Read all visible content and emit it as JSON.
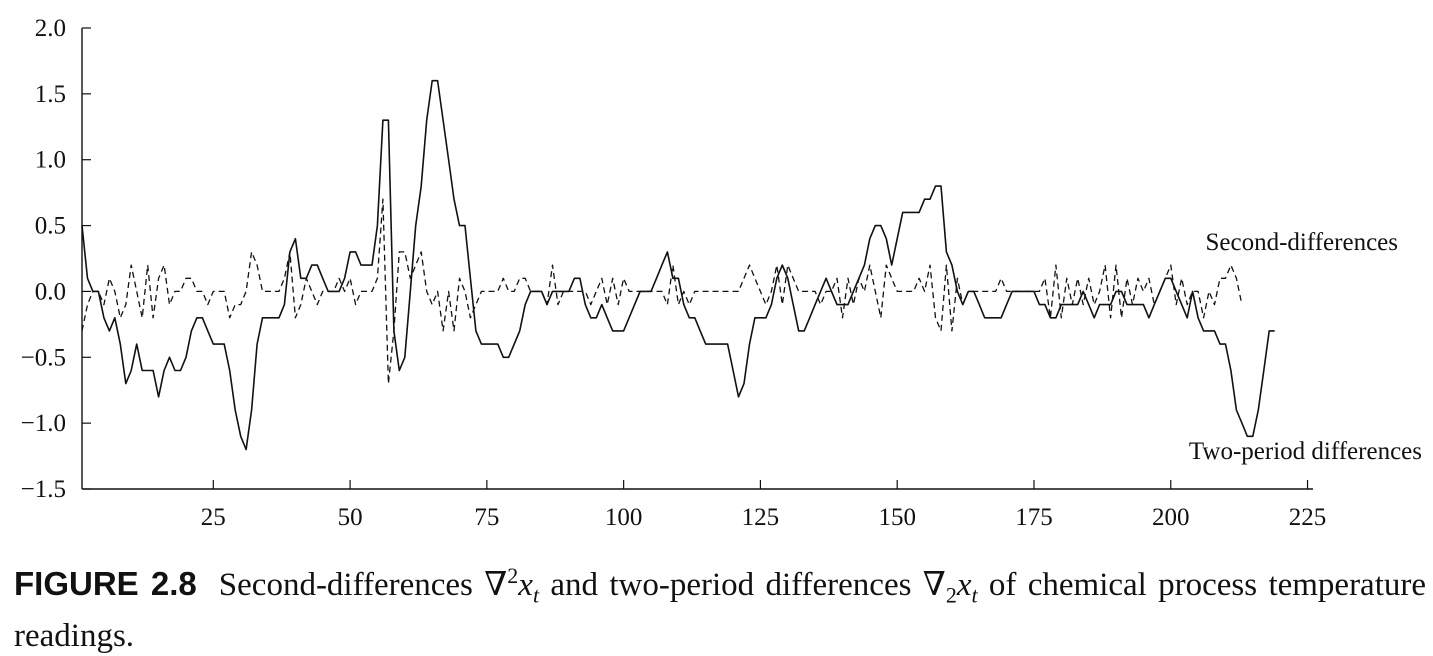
{
  "chart_data": {
    "type": "line",
    "title": "",
    "xlabel": "",
    "ylabel": "",
    "xlim": [
      1,
      226
    ],
    "ylim": [
      -1.5,
      2.0
    ],
    "x_ticks": [
      25,
      50,
      75,
      100,
      125,
      150,
      175,
      200,
      225
    ],
    "y_ticks": [
      2.0,
      1.5,
      1.0,
      0.5,
      0.0,
      -0.5,
      -1.0,
      -1.5
    ],
    "y_tick_labels": [
      "2.0",
      "1.5",
      "1.0",
      "0.5",
      "0.0",
      "−0.5",
      "−1.0",
      "−1.5"
    ],
    "grid": false,
    "legend": "annotations at right",
    "series": [
      {
        "name": "Two-period differences",
        "style": "solid",
        "x_start": 1,
        "values": [
          0.5,
          0.1,
          0.0,
          0.0,
          -0.2,
          -0.3,
          -0.2,
          -0.4,
          -0.7,
          -0.6,
          -0.4,
          -0.6,
          -0.6,
          -0.6,
          -0.8,
          -0.6,
          -0.5,
          -0.6,
          -0.6,
          -0.5,
          -0.3,
          -0.2,
          -0.2,
          -0.3,
          -0.4,
          -0.4,
          -0.4,
          -0.6,
          -0.9,
          -1.1,
          -1.2,
          -0.9,
          -0.4,
          -0.2,
          -0.2,
          -0.2,
          -0.2,
          -0.1,
          0.3,
          0.4,
          0.1,
          0.1,
          0.2,
          0.2,
          0.1,
          0.0,
          0.0,
          0.0,
          0.1,
          0.3,
          0.3,
          0.2,
          0.2,
          0.2,
          0.5,
          1.3,
          1.3,
          -0.3,
          -0.6,
          -0.5,
          0.0,
          0.5,
          0.8,
          1.3,
          1.6,
          1.6,
          1.3,
          1.0,
          0.7,
          0.5,
          0.5,
          0.1,
          -0.3,
          -0.4,
          -0.4,
          -0.4,
          -0.4,
          -0.5,
          -0.5,
          -0.4,
          -0.3,
          -0.1,
          0.0,
          0.0,
          0.0,
          -0.1,
          0.0,
          0.0,
          0.0,
          0.0,
          0.1,
          0.1,
          -0.1,
          -0.2,
          -0.2,
          -0.1,
          -0.2,
          -0.3,
          -0.3,
          -0.3,
          -0.2,
          -0.1,
          0.0,
          0.0,
          0.0,
          0.1,
          0.2,
          0.3,
          0.1,
          0.1,
          -0.1,
          -0.2,
          -0.2,
          -0.3,
          -0.4,
          -0.4,
          -0.4,
          -0.4,
          -0.4,
          -0.6,
          -0.8,
          -0.7,
          -0.4,
          -0.2,
          -0.2,
          -0.2,
          -0.1,
          0.1,
          0.2,
          0.1,
          -0.1,
          -0.3,
          -0.3,
          -0.2,
          -0.1,
          0.0,
          0.1,
          0.0,
          -0.1,
          -0.1,
          -0.1,
          0.0,
          0.1,
          0.2,
          0.4,
          0.5,
          0.5,
          0.4,
          0.2,
          0.4,
          0.6,
          0.6,
          0.6,
          0.6,
          0.7,
          0.7,
          0.8,
          0.8,
          0.3,
          0.2,
          0.0,
          -0.1,
          0.0,
          0.0,
          -0.1,
          -0.2,
          -0.2,
          -0.2,
          -0.2,
          -0.1,
          0.0,
          0.0,
          0.0,
          0.0,
          0.0,
          -0.1,
          -0.1,
          -0.2,
          -0.2,
          -0.1,
          -0.1,
          -0.1,
          -0.1,
          0.0,
          -0.1,
          -0.2,
          -0.1,
          -0.1,
          -0.1,
          0.0,
          0.0,
          -0.1,
          -0.1,
          -0.1,
          -0.1,
          -0.2,
          -0.1,
          0.0,
          0.1,
          0.1,
          0.0,
          -0.1,
          -0.2,
          0.0,
          -0.2,
          -0.3,
          -0.3,
          -0.3,
          -0.4,
          -0.4,
          -0.6,
          -0.9,
          -1.0,
          -1.1,
          -1.1,
          -0.9,
          -0.6,
          -0.3,
          -0.3
        ]
      },
      {
        "name": "Second-differences",
        "style": "dashed",
        "x_start": 1,
        "values": [
          -0.3,
          -0.1,
          0.0,
          0.0,
          -0.1,
          0.1,
          0.0,
          -0.2,
          -0.1,
          0.2,
          0.0,
          -0.2,
          0.2,
          -0.2,
          0.1,
          0.2,
          -0.1,
          0.0,
          0.0,
          0.1,
          0.1,
          0.0,
          0.0,
          -0.1,
          0.0,
          0.0,
          0.0,
          -0.2,
          -0.1,
          -0.1,
          0.0,
          0.3,
          0.2,
          0.0,
          0.0,
          0.0,
          0.0,
          0.1,
          0.3,
          -0.2,
          -0.1,
          0.1,
          0.0,
          -0.1,
          0.0,
          0.0,
          0.0,
          0.1,
          0.0,
          0.1,
          -0.1,
          0.0,
          0.0,
          0.0,
          0.1,
          0.7,
          -0.7,
          -0.3,
          0.3,
          0.3,
          0.1,
          0.2,
          0.3,
          0.0,
          -0.1,
          0.0,
          -0.3,
          0.0,
          -0.3,
          0.1,
          0.0,
          -0.2,
          -0.1,
          0.0,
          0.0,
          0.0,
          0.0,
          0.1,
          0.0,
          0.0,
          0.1,
          0.1,
          0.0,
          0.0,
          0.0,
          -0.1,
          0.2,
          -0.1,
          0.0,
          0.0,
          0.0,
          0.0,
          0.0,
          -0.1,
          0.0,
          0.1,
          -0.1,
          0.1,
          -0.1,
          0.1,
          0.0,
          0.0,
          0.0,
          0.0,
          0.0,
          0.0,
          0.0,
          -0.1,
          0.2,
          -0.1,
          0.0,
          -0.1,
          0.0,
          0.0,
          0.0,
          0.0,
          0.0,
          0.0,
          0.0,
          0.0,
          0.0,
          0.1,
          0.2,
          0.1,
          0.0,
          -0.1,
          0.0,
          0.2,
          -0.1,
          0.2,
          0.1,
          0.0,
          0.0,
          0.0,
          0.0,
          -0.1,
          0.0,
          0.0,
          0.1,
          -0.2,
          0.1,
          -0.1,
          0.1,
          0.0,
          0.2,
          0.0,
          -0.2,
          0.2,
          0.1,
          0.0,
          0.0,
          0.0,
          0.0,
          0.1,
          0.0,
          0.2,
          -0.2,
          -0.3,
          0.2,
          -0.3,
          0.1,
          -0.1,
          0.0,
          0.0,
          0.0,
          0.0,
          0.0,
          0.0,
          0.1,
          0.0,
          0.0,
          0.0,
          0.0,
          0.0,
          0.0,
          0.0,
          0.1,
          -0.2,
          0.2,
          -0.2,
          0.1,
          -0.1,
          0.1,
          -0.1,
          0.1,
          -0.1,
          0.0,
          0.2,
          -0.2,
          0.2,
          -0.2,
          0.1,
          -0.1,
          0.1,
          0.0,
          0.1,
          -0.1,
          0.0,
          0.1,
          0.2,
          -0.1,
          0.1,
          -0.1,
          0.0,
          0.0,
          -0.2,
          0.0,
          -0.1,
          0.1,
          0.1,
          0.2,
          0.1,
          -0.1
        ]
      }
    ],
    "annotations": [
      "Second-differences",
      "Two-period differences"
    ]
  },
  "caption": {
    "figure_label": "FIGURE 2.8",
    "part1": "Second-differences ∇",
    "sup1": "2",
    "var1": "x",
    "sub1": "t",
    "part2": " and two-period differences ∇",
    "sub2": "2",
    "var2": "x",
    "sub3": "t",
    "part3": " of chemical process temperature readings."
  }
}
